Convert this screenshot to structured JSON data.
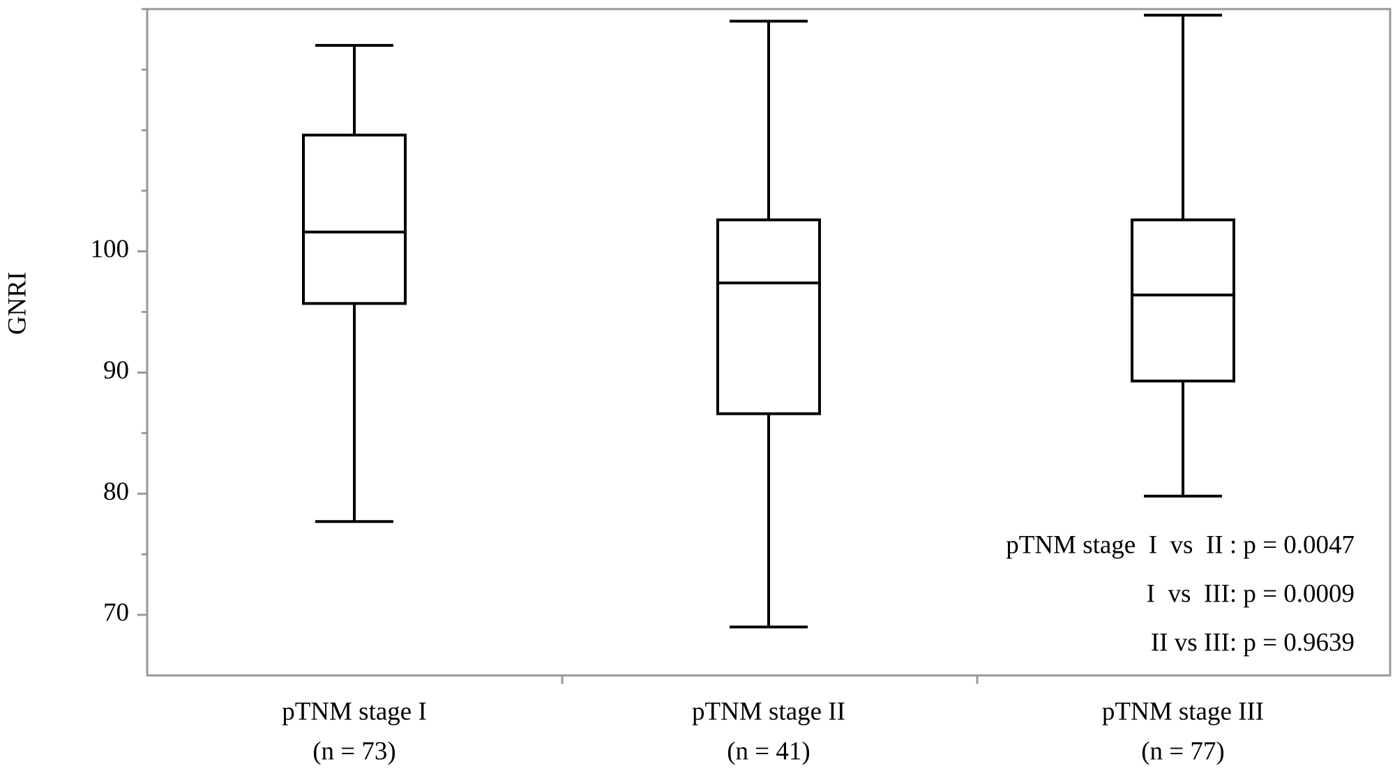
{
  "chart_data": {
    "type": "box",
    "y_label": "GNRI",
    "categories": [
      "pTNM stage I",
      "pTNM stage II",
      "pTNM stage III"
    ],
    "category_counts": [
      "(n = 73)",
      "(n = 41)",
      "(n = 77)"
    ],
    "boxes": [
      {
        "min": 77.7,
        "q1": 95.7,
        "median": 101.6,
        "q3": 109.6,
        "max": 117.0
      },
      {
        "min": 69.0,
        "q1": 86.6,
        "median": 97.4,
        "q3": 102.6,
        "max": 119.0
      },
      {
        "min": 79.8,
        "q1": 89.3,
        "median": 96.4,
        "q3": 102.6,
        "max": 119.5
      }
    ],
    "color": "#000000",
    "ylim": [
      65,
      120
    ],
    "yticks": [
      70,
      80,
      90,
      100
    ],
    "minor_yticks": [
      75,
      85,
      95,
      105,
      110,
      115,
      120
    ],
    "annotations": [
      "pTNM stage  I  vs  II : p = 0.0047",
      "I  vs  III: p = 0.0009",
      "II vs III: p = 0.9639"
    ]
  }
}
